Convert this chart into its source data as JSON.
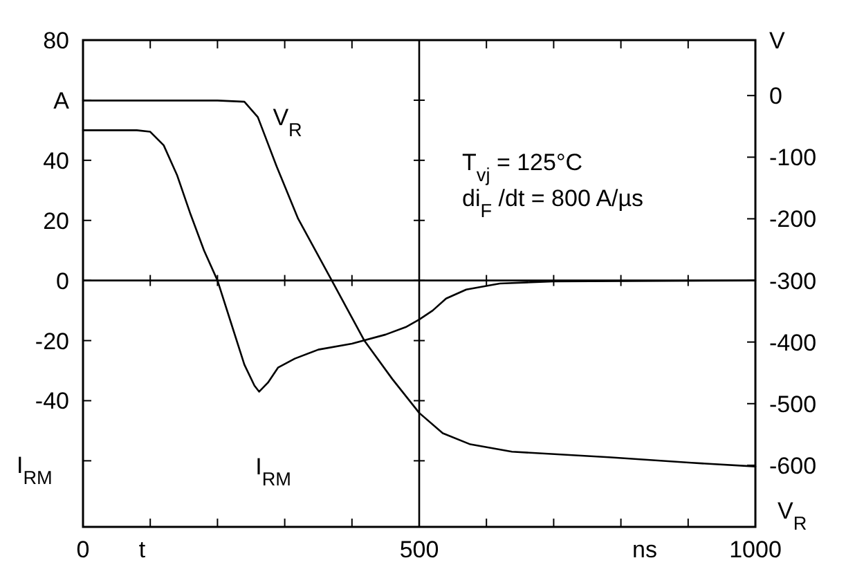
{
  "chart_data": {
    "type": "line",
    "xlabel": "t",
    "ylabel": "I$_{RM}$",
    "y2label": "V$_{R}$",
    "annotations": [
      "T$_{vj}$ = 125°C",
      "di$_{F}$ /dt = 800 A/µs",
      "ns"
    ],
    "xlim": [
      0,
      1000
    ],
    "xticks": [
      0,
      {
        "value": 100,
        "label": null
      },
      {
        "value": 200,
        "label": null
      },
      {
        "value": 300,
        "label": null
      },
      {
        "value": 400,
        "label": null
      },
      500,
      {
        "value": 600,
        "label": null
      },
      {
        "value": 700,
        "label": null
      },
      {
        "value": 800,
        "label": null
      },
      {
        "value": 900,
        "label": null
      },
      1000
    ],
    "ylim": [
      -82,
      80
    ],
    "yticks": [
      80,
      {
        "value": 60,
        "label": "A"
      },
      40,
      20,
      0,
      -20,
      -40,
      {
        "value": -60,
        "label": null
      }
    ],
    "y2lim": [
      -700,
      90
    ],
    "y2ticks": [
      {
        "value": 90,
        "label": "V"
      },
      0,
      -100,
      -200,
      -300,
      -400,
      -500,
      -600
    ],
    "ref_lines": [
      {
        "axis": "x",
        "value": 500,
        "color": "#000000"
      },
      {
        "axis": "y",
        "value": 0,
        "color": "#000000"
      }
    ],
    "grid": false,
    "series": [
      {
        "name": "I$_{RM}$",
        "color": "#000000",
        "x": [
          0,
          80,
          100,
          120,
          140,
          160,
          180,
          200,
          220,
          240,
          255,
          262,
          275,
          290,
          315,
          350,
          400,
          450,
          480,
          500,
          520,
          540,
          570,
          620,
          700,
          1000
        ],
        "values": [
          50,
          50,
          49.5,
          45,
          35,
          22,
          10,
          0,
          -14,
          -28,
          -35,
          -37,
          -34,
          -29,
          -26,
          -23,
          -21,
          -18,
          -15.5,
          -13,
          -10,
          -6,
          -3,
          -1,
          -0.3,
          0
        ]
      },
      {
        "name": "V$_{R}$",
        "color": "#000000",
        "axis": "y2",
        "x": [
          0,
          200,
          240,
          260,
          288,
          320,
          370,
          418,
          460,
          500,
          535,
          576,
          638,
          782,
          905,
          1000
        ],
        "values": [
          -8,
          -8,
          -10,
          -35,
          -115,
          -200,
          -300,
          -397,
          -460,
          -515,
          -548,
          -566,
          -578,
          -587,
          -596,
          -602
        ]
      }
    ]
  }
}
